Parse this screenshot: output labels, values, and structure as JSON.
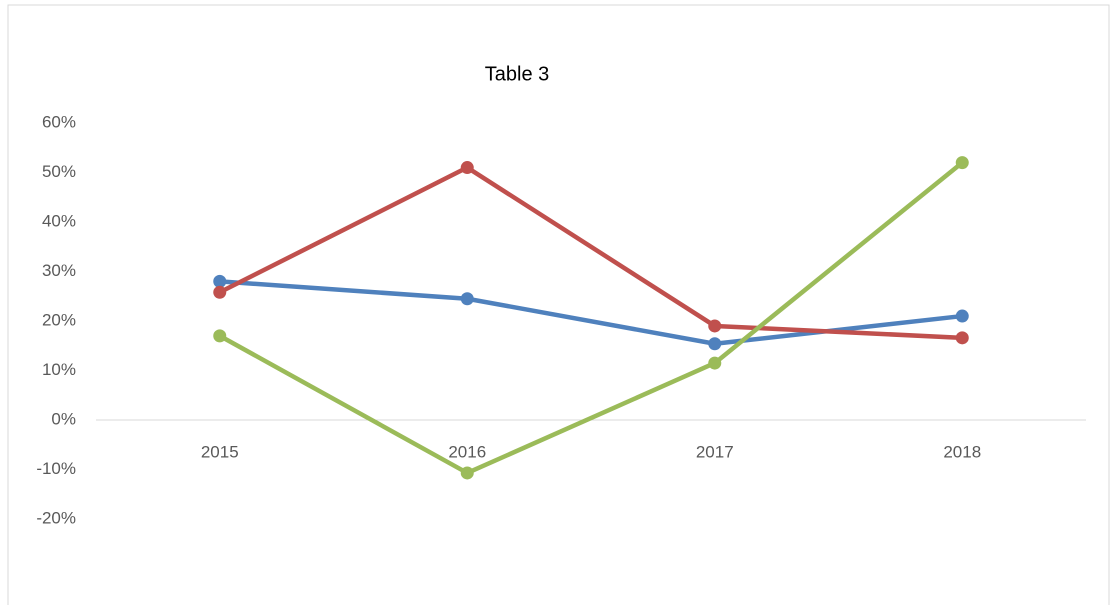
{
  "chart_data": {
    "type": "line",
    "title": "Table 3",
    "categories": [
      "2015",
      "2016",
      "2017",
      "2018"
    ],
    "series": [
      {
        "color": "#4f81bd",
        "values": [
          28,
          24.5,
          15.4,
          21
        ]
      },
      {
        "color": "#c0504d",
        "values": [
          25.8,
          51,
          19,
          16.6
        ]
      },
      {
        "color": "#9bbb59",
        "values": [
          17,
          -10.7,
          11.5,
          52
        ]
      }
    ],
    "ylim": [
      -20,
      60
    ],
    "yticks": [
      {
        "value": -20,
        "label": "-20%"
      },
      {
        "value": -10,
        "label": "-10%"
      },
      {
        "value": 0,
        "label": "0%"
      },
      {
        "value": 10,
        "label": "10%"
      },
      {
        "value": 20,
        "label": "20%"
      },
      {
        "value": 30,
        "label": "30%"
      },
      {
        "value": 40,
        "label": "40%"
      },
      {
        "value": 50,
        "label": "50%"
      },
      {
        "value": 60,
        "label": "60%"
      }
    ],
    "grid": false
  }
}
